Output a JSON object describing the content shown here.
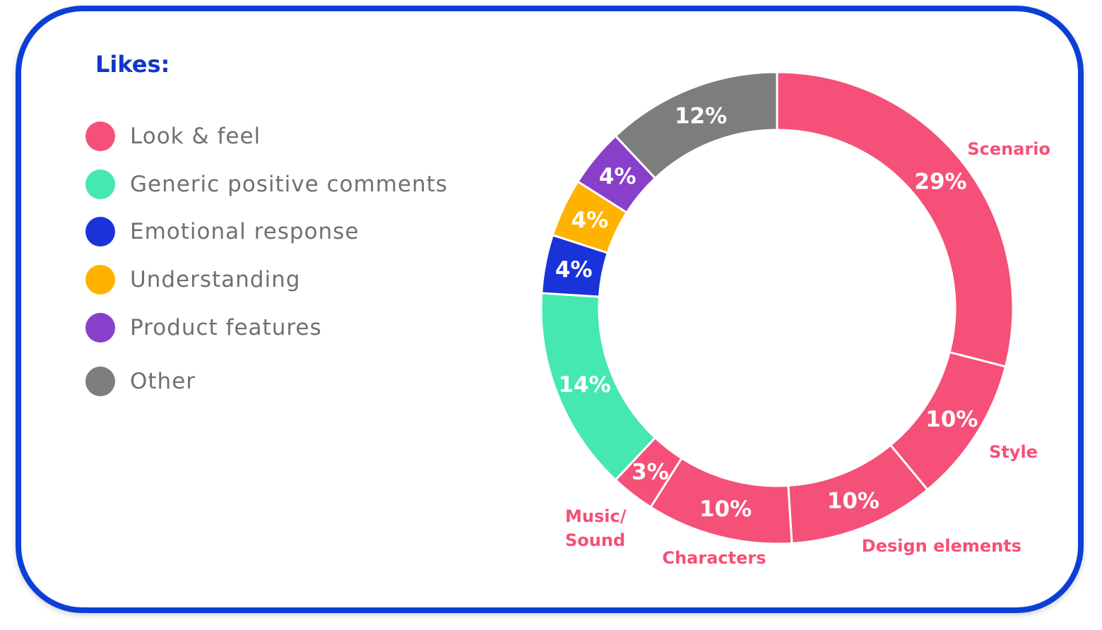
{
  "chart_data": {
    "type": "pie",
    "title": "Likes:",
    "legend": [
      {
        "label": "Look & feel",
        "color": "#f55077"
      },
      {
        "label": "Generic positive comments",
        "color": "#45e8b0"
      },
      {
        "label": "Emotional response",
        "color": "#1a33d9"
      },
      {
        "label": "Understanding",
        "color": "#ffb300"
      },
      {
        "label": "Product features",
        "color": "#8a3fcb"
      },
      {
        "label": "Other",
        "color": "#7d7d7d"
      }
    ],
    "slices": [
      {
        "value": 29,
        "label": "29%",
        "category": "Scenario",
        "group": "Look & feel",
        "color": "#f55077"
      },
      {
        "value": 10,
        "label": "10%",
        "category": "Style",
        "group": "Look & feel",
        "color": "#f55077"
      },
      {
        "value": 10,
        "label": "10%",
        "category": "Design elements",
        "group": "Look & feel",
        "color": "#f55077"
      },
      {
        "value": 10,
        "label": "10%",
        "category": "Characters",
        "group": "Look & feel",
        "color": "#f55077"
      },
      {
        "value": 3,
        "label": "3%",
        "category": "Music/\nSound",
        "group": "Look & feel",
        "color": "#f55077"
      },
      {
        "value": 14,
        "label": "14%",
        "category": "",
        "group": "Generic positive comments",
        "color": "#45e8b0"
      },
      {
        "value": 4,
        "label": "4%",
        "category": "",
        "group": "Emotional response",
        "color": "#1a33d9"
      },
      {
        "value": 4,
        "label": "4%",
        "category": "",
        "group": "Understanding",
        "color": "#ffb300"
      },
      {
        "value": 4,
        "label": "4%",
        "category": "",
        "group": "Product features",
        "color": "#8a3fcb"
      },
      {
        "value": 12,
        "label": "12%",
        "category": "",
        "group": "Other",
        "color": "#7d7d7d"
      }
    ]
  }
}
